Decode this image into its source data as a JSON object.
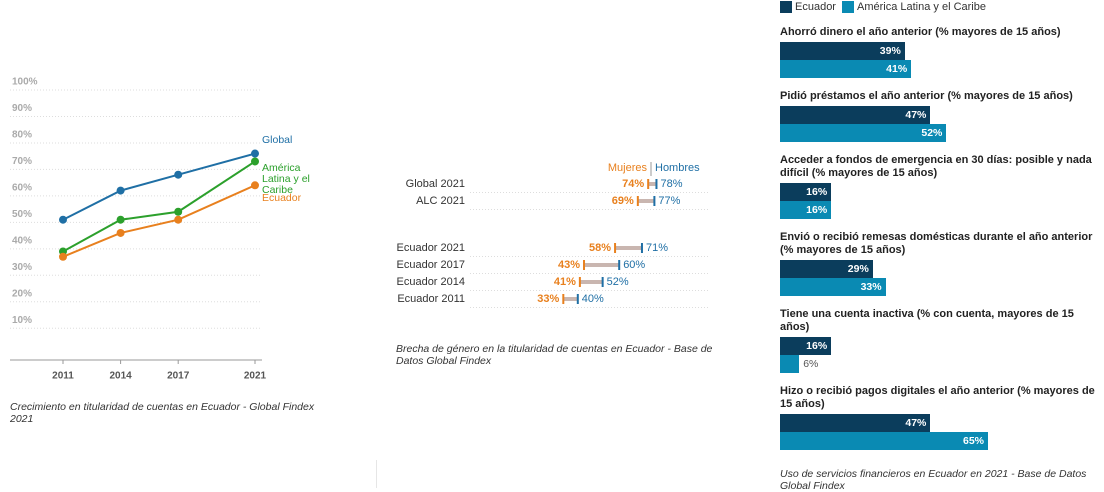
{
  "chart_data": [
    {
      "type": "line",
      "caption": "Crecimiento en titularidad de cuentas en Ecuador - Global Findex 2021",
      "x": [
        2011,
        2014,
        2017,
        2021
      ],
      "xlim": [
        2011,
        2021
      ],
      "xticks": [
        2011,
        2014,
        2017,
        2021
      ],
      "ylim": [
        -2,
        100
      ],
      "yticks": [
        {
          "value": 10,
          "label": "10%"
        },
        {
          "value": 20,
          "label": "20%"
        },
        {
          "value": 30,
          "label": "30%"
        },
        {
          "value": 40,
          "label": "40%"
        },
        {
          "value": 50,
          "label": "50%"
        },
        {
          "value": 60,
          "label": "60%"
        },
        {
          "value": 70,
          "label": "70%"
        },
        {
          "value": 80,
          "label": "80%"
        },
        {
          "value": 90,
          "label": "90%"
        },
        {
          "value": 100,
          "label": "100%"
        }
      ],
      "grid": true,
      "series": [
        {
          "name": "Global",
          "color": "#1f6fa5",
          "values": [
            51,
            62,
            68,
            76
          ]
        },
        {
          "name": "América Latina y el Caribe",
          "color": "#2ca02c",
          "values": [
            39,
            51,
            54,
            73
          ]
        },
        {
          "name": "Ecuador",
          "color": "#e8801e",
          "values": [
            37,
            46,
            51,
            64
          ]
        }
      ]
    },
    {
      "type": "dumbbell",
      "caption": "Brecha de género en la titularidad de cuentas en Ecuador - Base de Datos Global Findex",
      "categories": [
        "Global 2021",
        "ALC 2021",
        "Ecuador 2021",
        "Ecuador 2017",
        "Ecuador 2014",
        "Ecuador 2011"
      ],
      "series": [
        {
          "name": "Mujeres",
          "color": "#e8801e",
          "values": [
            74,
            69,
            58,
            43,
            41,
            33
          ],
          "value_labels": [
            "74%",
            "69%",
            "58%",
            "43%",
            "41%",
            "33%"
          ]
        },
        {
          "name": "Hombres",
          "color": "#1f6fa5",
          "values": [
            78,
            77,
            71,
            60,
            52,
            40
          ],
          "value_labels": [
            "78%",
            "77%",
            "71%",
            "60%",
            "52%",
            "40%"
          ]
        }
      ]
    },
    {
      "type": "hbar",
      "caption": "Uso de servicios financieros en Ecuador en 2021 - Base de Datos Global Findex",
      "categories": [
        "Ahorró dinero el año anterior (% mayores de 15 años)",
        "Pidió préstamos el año anterior (% mayores de 15 años)",
        "Acceder a fondos de emergencia en 30 días: posible y nada difícil (% mayores de 15 años)",
        "Envió o recibió remesas domésticas durante el año anterior (% mayores de 15 años)",
        "Tiene una cuenta inactiva (% con cuenta, mayores de 15 años)",
        "Hizo o recibió pagos digitales el año anterior (% mayores de 15 años)"
      ],
      "series": [
        {
          "name": "Ecuador",
          "color": "#0b3d5c",
          "values": [
            39,
            47,
            16,
            29,
            16,
            47
          ],
          "value_labels": [
            "39%",
            "47%",
            "16%",
            "29%",
            "16%",
            "47%"
          ]
        },
        {
          "name": "América Latina y el Caribe",
          "color": "#0a8ab3",
          "values": [
            41,
            52,
            16,
            33,
            6,
            65
          ],
          "value_labels": [
            "41%",
            "52%",
            "16%",
            "33%",
            "6%",
            "65%"
          ]
        }
      ]
    }
  ]
}
